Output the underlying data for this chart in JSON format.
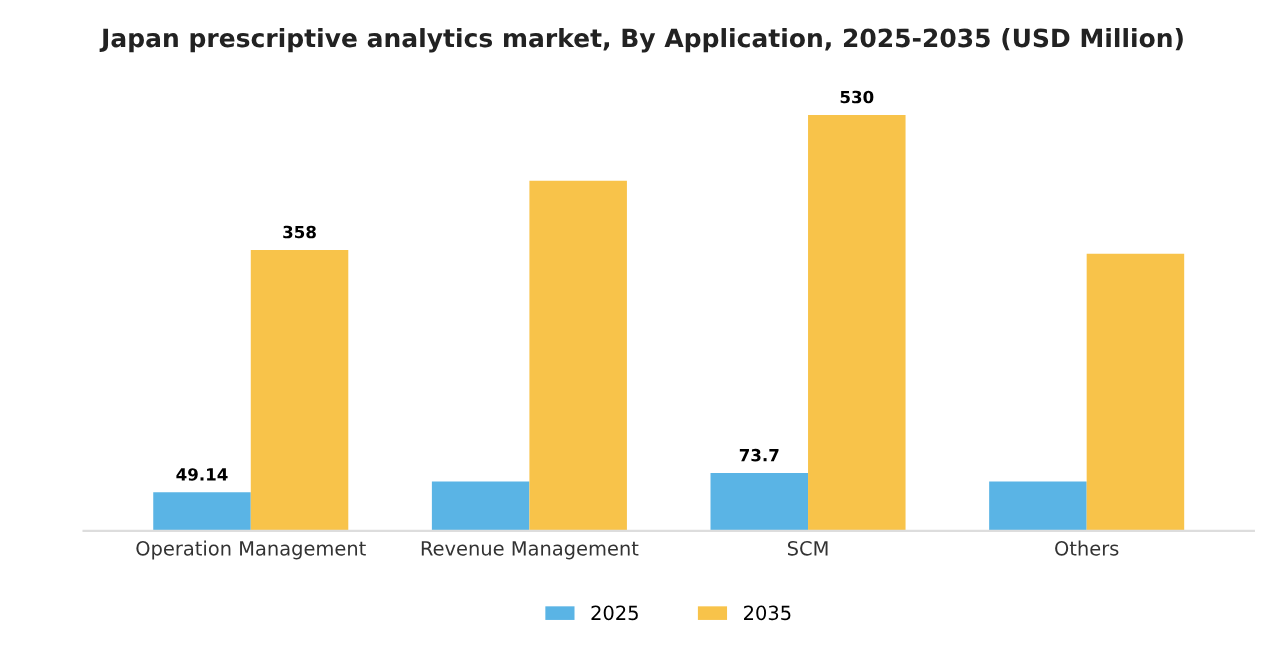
{
  "chart_data": {
    "type": "bar",
    "title": "Japan prescriptive analytics market, By Application, 2025-2035 (USD Million)",
    "categories": [
      "Operation Management",
      "Revenue Management",
      "SCM",
      "Others"
    ],
    "series": [
      {
        "name": "2025",
        "color": "#5ab4e5",
        "values": [
          49.14,
          63,
          73.7,
          63
        ],
        "value_labels": [
          "49.14",
          null,
          "73.7",
          null
        ]
      },
      {
        "name": "2035",
        "color": "#f8c34a",
        "values": [
          358,
          446,
          530,
          353
        ],
        "value_labels": [
          "358",
          null,
          "530",
          null
        ]
      }
    ],
    "legend": "bottom",
    "grid": false,
    "tick_labels": "x"
  }
}
